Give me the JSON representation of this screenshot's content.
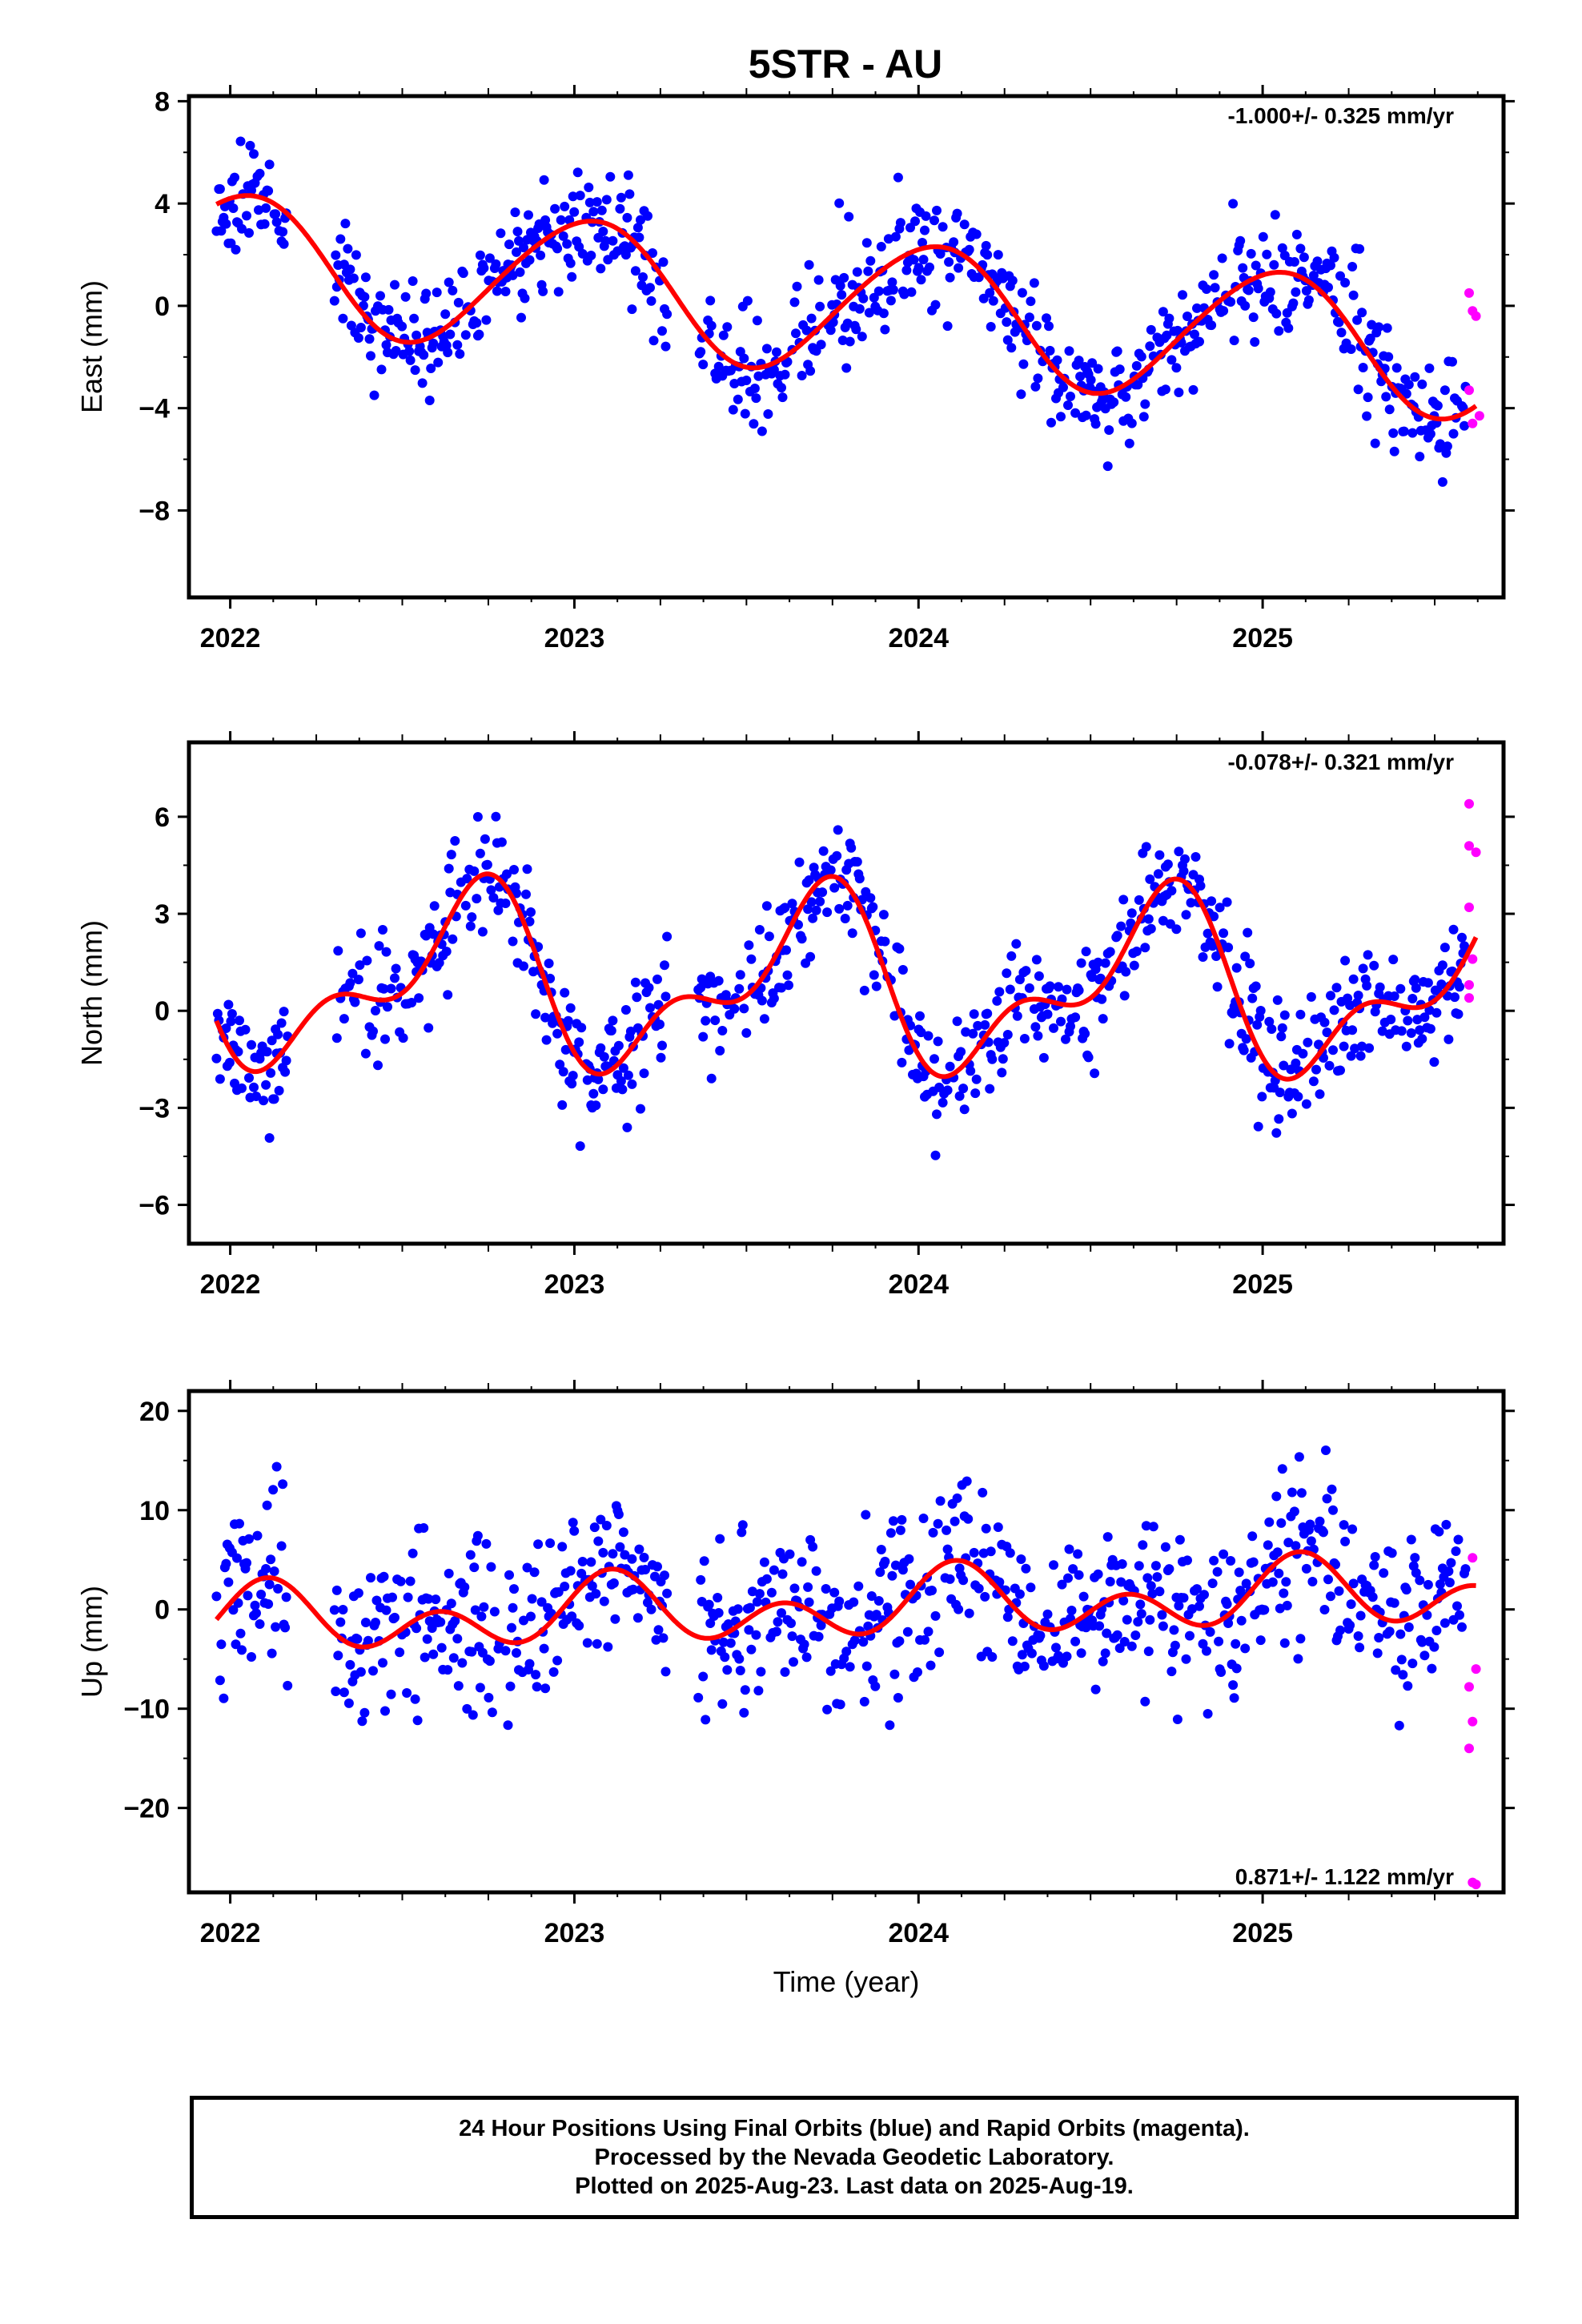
{
  "title": "5STR - AU",
  "footer": {
    "line1": "24 Hour Positions Using Final Orbits (blue) and Rapid Orbits (magenta).",
    "line2": "Processed by the Nevada Geodetic Laboratory.",
    "line3": "Plotted on 2025-Aug-23. Last data on 2025-Aug-19."
  },
  "colors": {
    "final": "#0000ff",
    "rapid": "#ff00ff",
    "model": "#ff0000"
  },
  "chart_data": [
    {
      "type": "scatter",
      "ylabel": "East (mm)",
      "xlabel": "",
      "xlim": [
        2021.88,
        2025.7
      ],
      "ylim": [
        -11.4,
        8.2
      ],
      "xticks": [
        2022,
        2023,
        2024,
        2025
      ],
      "yticks": [
        -8,
        -4,
        0,
        4,
        8
      ],
      "yticklabels": [
        "−8",
        "−4",
        "0",
        "4",
        "8"
      ],
      "rate_label": "-1.000+/- 0.325 mm/yr",
      "rate_pos": "top-right",
      "model": {
        "trend": -1.0,
        "anchor": 2023.8,
        "offset": 0.0,
        "annual_c": 2.55,
        "annual_s": 0.55,
        "semi_c": -0.15,
        "semi_s": 0.15
      },
      "noise_sd": 1.1,
      "seed": 11,
      "rapid": [
        [
          2025.6,
          0.5
        ],
        [
          2025.61,
          -0.2
        ],
        [
          2025.62,
          -0.4
        ],
        [
          2025.6,
          -3.3
        ],
        [
          2025.63,
          -4.3
        ],
        [
          2025.61,
          -4.6
        ]
      ]
    },
    {
      "type": "scatter",
      "ylabel": "North (mm)",
      "xlabel": "",
      "xlim": [
        2021.88,
        2025.7
      ],
      "ylim": [
        -7.2,
        8.3
      ],
      "xticks": [
        2022,
        2023,
        2024,
        2025
      ],
      "yticks": [
        -6,
        -3,
        0,
        3,
        6
      ],
      "yticklabels": [
        "−6",
        "−3",
        "0",
        "3",
        "6"
      ],
      "rate_label": "-0.078+/- 0.321 mm/yr",
      "rate_pos": "top-right",
      "model": {
        "trend": -0.078,
        "anchor": 2023.8,
        "offset": 0.8,
        "annual_c": -0.9,
        "annual_s": -2.1,
        "semi_c": -1.25,
        "semi_s": -0.4
      },
      "noise_sd": 0.9,
      "seed": 23,
      "rapid": [
        [
          2025.6,
          6.4
        ],
        [
          2025.6,
          5.1
        ],
        [
          2025.62,
          4.9
        ],
        [
          2025.6,
          3.2
        ],
        [
          2025.61,
          1.6
        ],
        [
          2025.6,
          0.8
        ],
        [
          2025.6,
          0.4
        ]
      ]
    },
    {
      "type": "scatter",
      "ylabel": "Up (mm)",
      "xlabel": "Time (year)",
      "xlim": [
        2021.88,
        2025.7
      ],
      "ylim": [
        -28.5,
        22
      ],
      "xticks": [
        2022,
        2023,
        2024,
        2025
      ],
      "yticks": [
        -20,
        -10,
        0,
        10,
        20
      ],
      "yticklabels": [
        "−20",
        "−10",
        "0",
        "10",
        "20"
      ],
      "rate_label": "0.871+/- 1.122 mm/yr",
      "rate_pos": "bottom-right",
      "model": {
        "trend": 0.871,
        "anchor": 2023.8,
        "offset": 0.2,
        "annual_c": 1.5,
        "annual_s": 1.2,
        "semi_c": 0.5,
        "semi_s": 2.5
      },
      "noise_sd": 4.3,
      "seed": 37,
      "rapid": [
        [
          2025.61,
          5.2
        ],
        [
          2025.62,
          -6.0
        ],
        [
          2025.6,
          -7.8
        ],
        [
          2025.61,
          -11.3
        ],
        [
          2025.6,
          -14.0
        ],
        [
          2025.61,
          -27.5
        ],
        [
          2025.62,
          -27.7
        ]
      ]
    }
  ]
}
